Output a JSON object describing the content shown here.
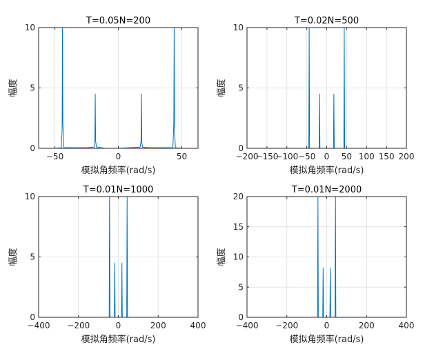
{
  "chart_data": [
    {
      "type": "line",
      "title": "T=0.05N=200",
      "xlabel": "模拟角频率(rad/s)",
      "ylabel": "幅度",
      "xlim": [
        -62.8,
        62.8
      ],
      "ylim": [
        0,
        10
      ],
      "xticks": [
        -50,
        0,
        50
      ],
      "yticks": [
        0,
        5,
        10
      ],
      "grid": true,
      "color": "#0072BD",
      "series": [
        {
          "points": [
            [
              -62.8,
              0
            ],
            [
              -50,
              0
            ],
            [
              -45,
              0.05
            ],
            [
              -44.3,
              1.5
            ],
            [
              -44,
              10
            ],
            [
              -43.7,
              2
            ],
            [
              -43,
              0.05
            ],
            [
              -25,
              0.05
            ],
            [
              -19,
              0.1
            ],
            [
              -18.5,
              0.5
            ],
            [
              -18.2,
              4.5
            ],
            [
              -17.9,
              0.6
            ],
            [
              -17.2,
              0.1
            ],
            [
              -10,
              0
            ],
            [
              0,
              0
            ],
            [
              17.2,
              0.1
            ],
            [
              17.9,
              0.6
            ],
            [
              18.2,
              4.5
            ],
            [
              18.5,
              0.5
            ],
            [
              19,
              0.1
            ],
            [
              25,
              0.05
            ],
            [
              43,
              0.05
            ],
            [
              43.7,
              2
            ],
            [
              44,
              10
            ],
            [
              44.3,
              1.5
            ],
            [
              45,
              0.05
            ],
            [
              50,
              0
            ],
            [
              62.8,
              0
            ]
          ]
        }
      ]
    },
    {
      "type": "line",
      "title": "T=0.02N=500",
      "xlabel": "模拟角频率(rad/s)",
      "ylabel": "幅度",
      "xlim": [
        -200,
        200
      ],
      "ylim": [
        0,
        10
      ],
      "xticks": [
        -200,
        -150,
        -100,
        -50,
        0,
        50,
        100,
        150,
        200
      ],
      "yticks": [
        0,
        5,
        10
      ],
      "grid": true,
      "color": "#0072BD",
      "series": [
        {
          "points": [
            [
              -157,
              0
            ],
            [
              -45,
              0
            ],
            [
              -44,
              10
            ],
            [
              -43,
              0
            ],
            [
              -19,
              0
            ],
            [
              -18,
              4.5
            ],
            [
              -17,
              0
            ],
            [
              17,
              0
            ],
            [
              18,
              4.5
            ],
            [
              19,
              0
            ],
            [
              43,
              0
            ],
            [
              44,
              10
            ],
            [
              45,
              0
            ],
            [
              157,
              0
            ]
          ]
        }
      ]
    },
    {
      "type": "line",
      "title": "T=0.01N=1000",
      "xlabel": "模拟角频率(rad/s)",
      "ylabel": "幅度",
      "xlim": [
        -400,
        400
      ],
      "ylim": [
        0,
        10
      ],
      "xticks": [
        -400,
        -200,
        0,
        200,
        400
      ],
      "yticks": [
        0,
        5,
        10
      ],
      "grid": true,
      "color": "#0072BD",
      "series": [
        {
          "points": [
            [
              -314,
              0
            ],
            [
              -46,
              0
            ],
            [
              -44,
              10
            ],
            [
              -42,
              0
            ],
            [
              -20,
              0
            ],
            [
              -18,
              4.5
            ],
            [
              -16,
              0
            ],
            [
              16,
              0
            ],
            [
              18,
              4.5
            ],
            [
              20,
              0
            ],
            [
              42,
              0
            ],
            [
              44,
              10
            ],
            [
              46,
              0
            ],
            [
              314,
              0
            ]
          ]
        }
      ]
    },
    {
      "type": "line",
      "title": "T=0.01N=2000",
      "xlabel": "模拟角频率(rad/s)",
      "ylabel": "幅度",
      "xlim": [
        -400,
        400
      ],
      "ylim": [
        0,
        20
      ],
      "xticks": [
        -400,
        -200,
        0,
        200,
        400
      ],
      "yticks": [
        0,
        5,
        10,
        15,
        20
      ],
      "grid": true,
      "color": "#0072BD",
      "series": [
        {
          "points": [
            [
              -314,
              0
            ],
            [
              -46,
              0
            ],
            [
              -44,
              20
            ],
            [
              -42,
              0
            ],
            [
              -20,
              0
            ],
            [
              -18,
              8.2
            ],
            [
              -16,
              0
            ],
            [
              16,
              0
            ],
            [
              18,
              8.2
            ],
            [
              20,
              0
            ],
            [
              42,
              0
            ],
            [
              44,
              20
            ],
            [
              46,
              0
            ],
            [
              314,
              0
            ]
          ]
        }
      ]
    }
  ]
}
